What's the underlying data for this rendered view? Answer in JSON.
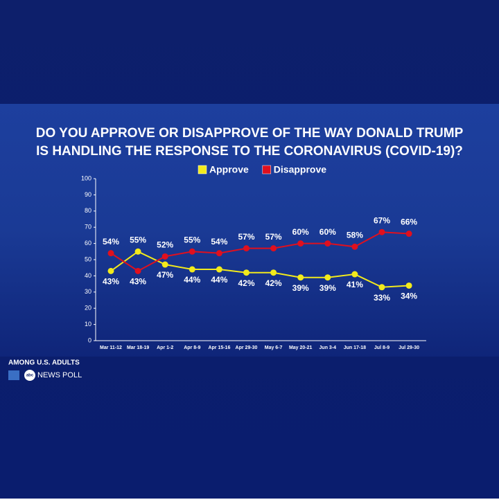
{
  "chart_data": {
    "type": "line",
    "title": "DO YOU APPROVE OR DISAPPROVE OF THE WAY DONALD TRUMP IS HANDLING THE RESPONSE TO THE CORONAVIRUS (COVID-19)?",
    "categories": [
      "Mar 11-12",
      "Mar 18-19",
      "Apr 1-2",
      "Apr 8-9",
      "Apr 15-16",
      "Apr 29-30",
      "May 6-7",
      "May 20-21",
      "Jun 3-4",
      "Jun 17-18",
      "Jul 8-9",
      "Jul 29-30"
    ],
    "series": [
      {
        "name": "Approve",
        "color": "#f2ea1c",
        "values": [
          43,
          55,
          47,
          44,
          44,
          42,
          42,
          39,
          39,
          41,
          33,
          34
        ],
        "value_labels": [
          "43%",
          "55%",
          "47%",
          "44%",
          "44%",
          "42%",
          "42%",
          "39%",
          "39%",
          "41%",
          "33%",
          "34%"
        ]
      },
      {
        "name": "Disapprove",
        "color": "#e0101e",
        "values": [
          54,
          43,
          52,
          55,
          54,
          57,
          57,
          60,
          60,
          58,
          67,
          66
        ],
        "value_labels": [
          "54%",
          "43%",
          "52%",
          "55%",
          "54%",
          "57%",
          "57%",
          "60%",
          "60%",
          "58%",
          "67%",
          "66%"
        ]
      }
    ],
    "ylim": [
      0,
      100
    ],
    "yticks": [
      0,
      10,
      20,
      30,
      40,
      50,
      60,
      70,
      80,
      90,
      100
    ],
    "grid": false,
    "note": "AMONG U.S. ADULTS",
    "source_logo": "abc",
    "source": "NEWS POLL"
  }
}
